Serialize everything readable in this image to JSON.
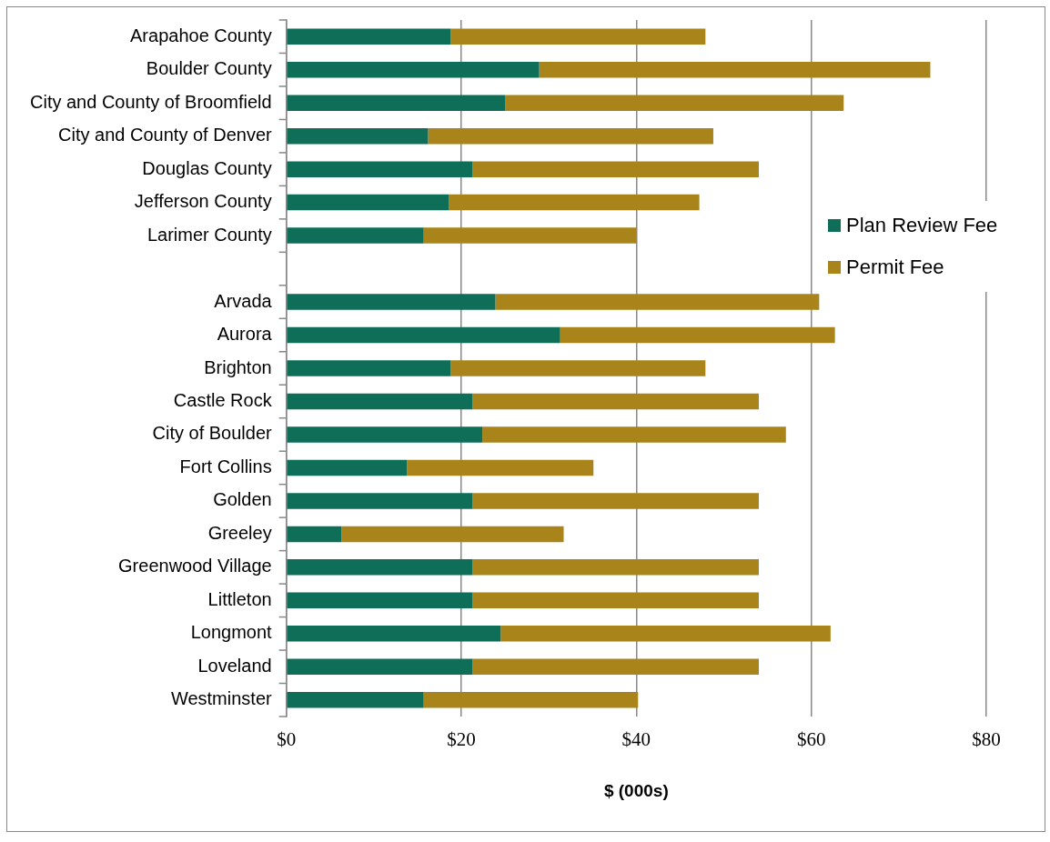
{
  "chart_data": {
    "type": "bar",
    "orientation": "horizontal",
    "stacked": true,
    "xlabel": "$ (000s)",
    "categories": [
      "Arapahoe County",
      "Boulder County",
      "City and County of Broomfield",
      "City and County of Denver",
      "Douglas County",
      "Jefferson County",
      "Larimer County",
      null,
      "Arvada",
      "Aurora",
      "Brighton",
      "Castle Rock",
      "City of Boulder",
      "Fort Collins",
      "Golden",
      "Greeley",
      "Greenwood Village",
      "Littleton",
      "Longmont",
      "Loveland",
      "Westminster"
    ],
    "series": [
      {
        "name": "Plan Review Fee",
        "color": "#0e6e57",
        "values": [
          18.8,
          28.9,
          25.0,
          16.2,
          21.3,
          18.6,
          15.7,
          null,
          23.9,
          31.3,
          18.8,
          21.3,
          22.4,
          13.8,
          21.3,
          6.3,
          21.3,
          21.3,
          24.5,
          21.3,
          15.7
        ]
      },
      {
        "name": "Permit Fee",
        "color": "#a8841a",
        "values": [
          29.1,
          44.7,
          38.7,
          32.6,
          32.7,
          28.6,
          24.3,
          null,
          37.0,
          31.4,
          29.1,
          32.7,
          34.7,
          21.3,
          32.7,
          25.4,
          32.7,
          32.7,
          37.7,
          32.7,
          24.5
        ]
      }
    ],
    "xlim": [
      0,
      80
    ],
    "xticks": [
      {
        "value": 0,
        "label": "$0"
      },
      {
        "value": 20,
        "label": "$20"
      },
      {
        "value": 40,
        "label": "$40"
      },
      {
        "value": 60,
        "label": "$60"
      },
      {
        "value": 80,
        "label": "$80"
      }
    ],
    "grid": "x",
    "legend": "right"
  }
}
